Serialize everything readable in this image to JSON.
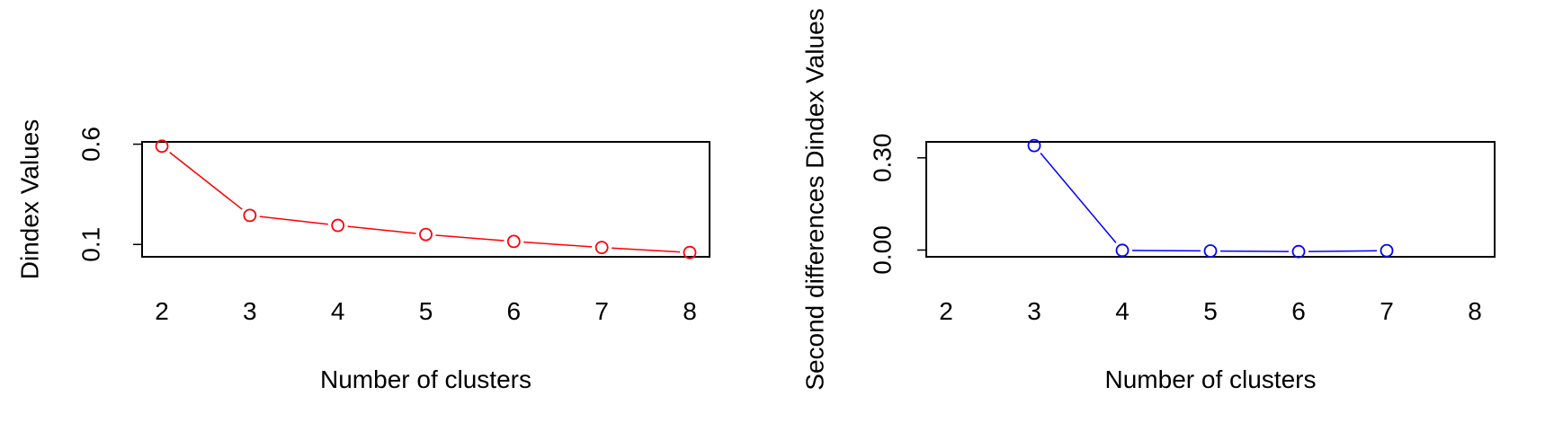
{
  "chart_data": [
    {
      "type": "line",
      "title": "",
      "xlabel": "Number of clusters",
      "ylabel": "Dindex Values",
      "x": [
        2,
        3,
        4,
        5,
        6,
        7,
        8
      ],
      "x_ticks": [
        "2",
        "3",
        "4",
        "5",
        "6",
        "7",
        "8"
      ],
      "xlim": [
        2,
        8
      ],
      "y_ticks": [
        0.1,
        0.6
      ],
      "y_tick_labels": [
        "0.1",
        "0.6"
      ],
      "ylim": [
        0.0385,
        0.6115
      ],
      "series": [
        {
          "name": "",
          "color": "#ff0000",
          "marker": "open-circle",
          "values": [
            0.59,
            0.245,
            0.195,
            0.15,
            0.115,
            0.085,
            0.06
          ]
        }
      ],
      "grid": false
    },
    {
      "type": "line",
      "title": "",
      "xlabel": "Number of clusters",
      "ylabel": "Second differences Dindex Values",
      "x": [
        3,
        4,
        5,
        6,
        7
      ],
      "x_ticks": [
        "2",
        "3",
        "4",
        "5",
        "6",
        "7",
        "8"
      ],
      "xlim": [
        2,
        8
      ],
      "y_ticks": [
        0.0,
        0.3
      ],
      "y_tick_labels": [
        "0.00",
        "0.30"
      ],
      "ylim": [
        -0.022,
        0.352
      ],
      "series": [
        {
          "name": "",
          "color": "#0000ff",
          "marker": "open-circle",
          "values": [
            0.34,
            -0.001,
            -0.003,
            -0.005,
            -0.002
          ]
        }
      ],
      "grid": false
    }
  ]
}
